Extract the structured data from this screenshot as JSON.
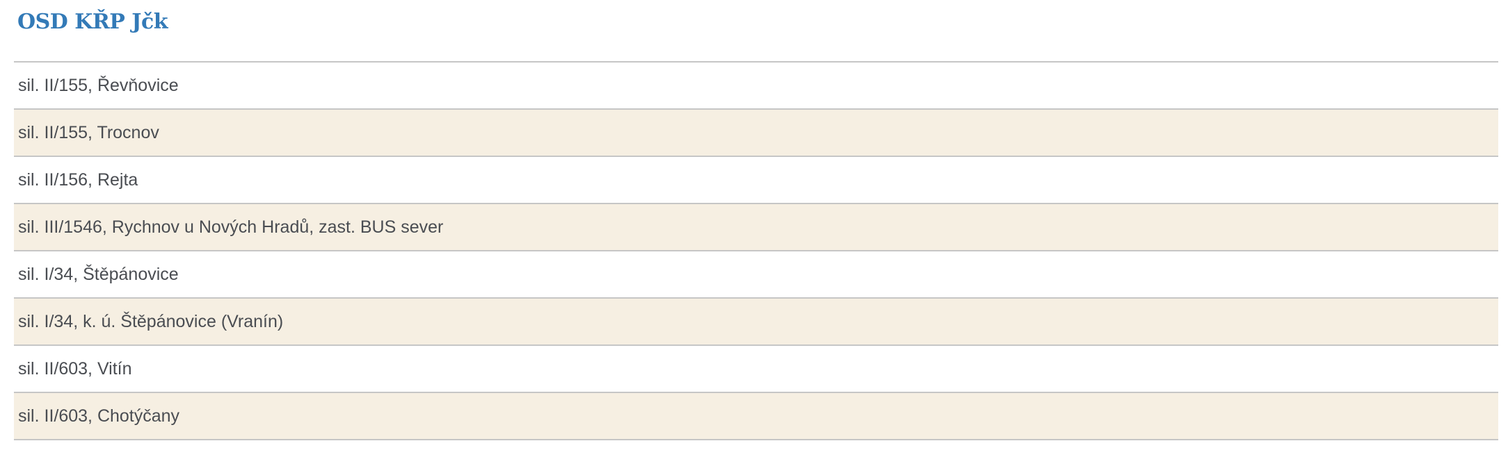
{
  "header": {
    "title": "OSD KŘP Jčk"
  },
  "locations": [
    "sil. II/155, Řevňovice",
    "sil. II/155, Trocnov",
    "sil. II/156, Rejta",
    "sil. III/1546, Rychnov u Nových Hradů, zast. BUS sever",
    "sil. I/34, Štěpánovice",
    "sil. I/34, k. ú. Štěpánovice (Vranín)",
    "sil. II/603, Vitín",
    "sil. II/603, Chotýčany"
  ],
  "colors": {
    "title": "#337ab7",
    "stripe": "#f6efe2",
    "divider": "#c6c6c6",
    "text": "#4a4d52"
  }
}
